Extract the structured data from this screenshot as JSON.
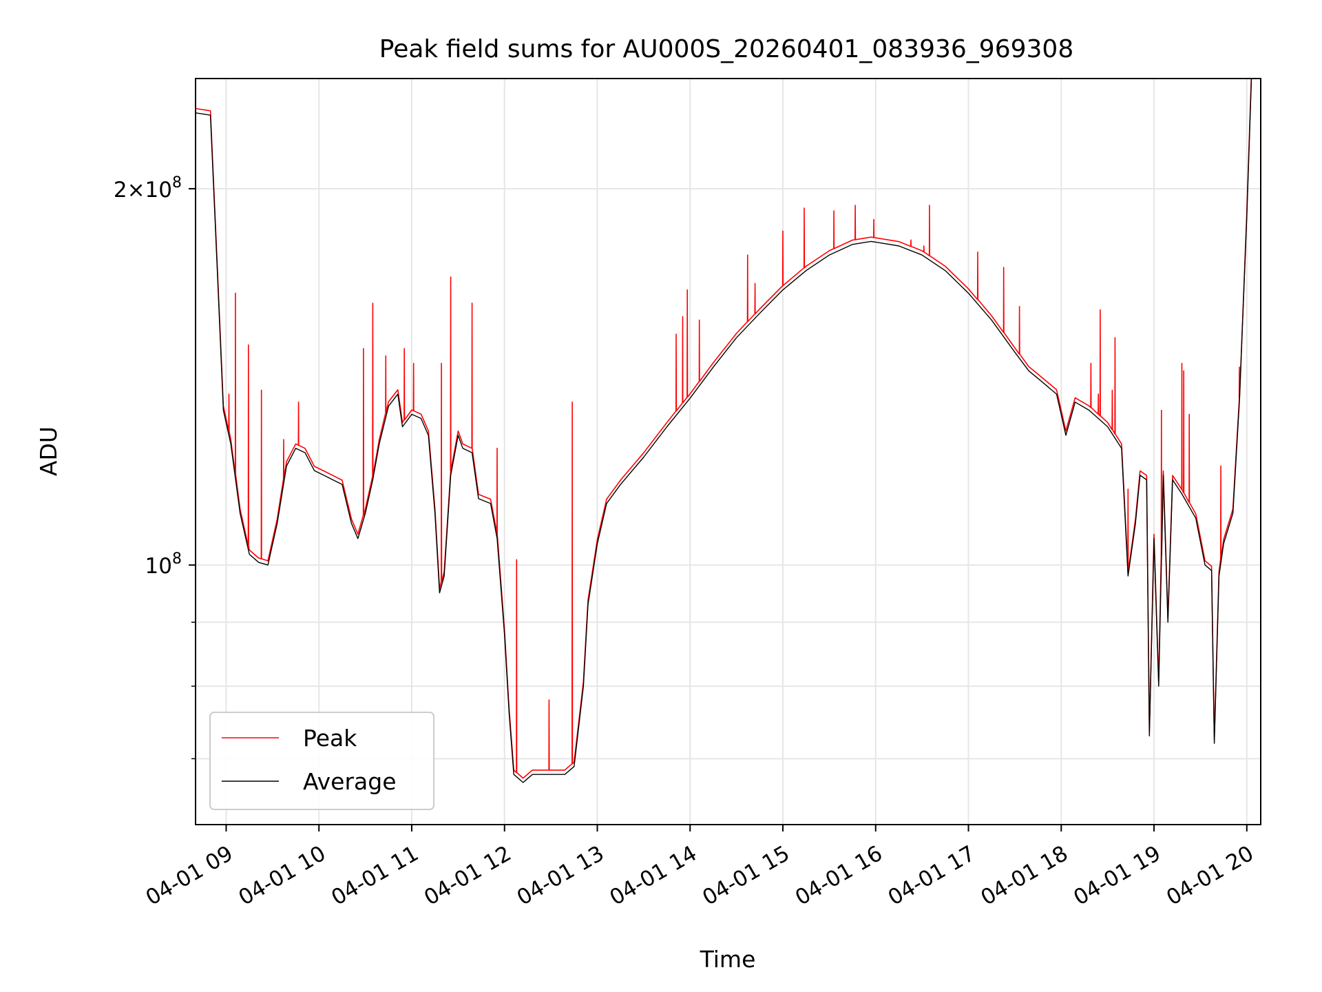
{
  "chart_data": {
    "type": "line",
    "title": "Peak field sums for AU000S_20260401_083936_969308",
    "xlabel": "Time",
    "ylabel": "ADU",
    "yscale": "log",
    "ylim": [
      62000000,
      245000000
    ],
    "xlim": [
      8.67,
      20.15
    ],
    "grid": true,
    "legend_location": "lower left",
    "x_unit": "hour of day on 04-01",
    "x_ticks": [
      {
        "value": 9,
        "label": "04-01 09"
      },
      {
        "value": 10,
        "label": "04-01 10"
      },
      {
        "value": 11,
        "label": "04-01 11"
      },
      {
        "value": 12,
        "label": "04-01 12"
      },
      {
        "value": 13,
        "label": "04-01 13"
      },
      {
        "value": 14,
        "label": "04-01 14"
      },
      {
        "value": 15,
        "label": "04-01 15"
      },
      {
        "value": 16,
        "label": "04-01 16"
      },
      {
        "value": 17,
        "label": "04-01 17"
      },
      {
        "value": 18,
        "label": "04-01 18"
      },
      {
        "value": 19,
        "label": "04-01 19"
      },
      {
        "value": 20,
        "label": "04-01 20"
      }
    ],
    "y_major_ticks": [
      {
        "value": 100000000,
        "base": "10",
        "exp": "8",
        "mult": ""
      },
      {
        "value": 200000000,
        "base": "10",
        "exp": "8",
        "mult": "2×"
      }
    ],
    "y_minor_ticks": [
      70000000,
      80000000,
      90000000
    ],
    "series": [
      {
        "name": "Average",
        "color": "#000000",
        "points": [
          [
            8.67,
            230000000
          ],
          [
            8.83,
            229000000
          ],
          [
            8.9,
            175000000
          ],
          [
            8.97,
            133000000
          ],
          [
            9.05,
            125000000
          ],
          [
            9.15,
            110000000
          ],
          [
            9.25,
            102000000
          ],
          [
            9.35,
            100500000
          ],
          [
            9.45,
            100000000
          ],
          [
            9.55,
            108000000
          ],
          [
            9.65,
            120000000
          ],
          [
            9.75,
            124000000
          ],
          [
            9.85,
            123000000
          ],
          [
            9.95,
            119000000
          ],
          [
            10.05,
            118000000
          ],
          [
            10.15,
            117000000
          ],
          [
            10.25,
            116000000
          ],
          [
            10.35,
            108000000
          ],
          [
            10.42,
            105000000
          ],
          [
            10.5,
            110000000
          ],
          [
            10.58,
            117000000
          ],
          [
            10.65,
            125000000
          ],
          [
            10.75,
            134000000
          ],
          [
            10.85,
            137000000
          ],
          [
            10.9,
            129000000
          ],
          [
            11.0,
            132000000
          ],
          [
            11.1,
            131000000
          ],
          [
            11.18,
            127000000
          ],
          [
            11.25,
            110000000
          ],
          [
            11.3,
            95000000
          ],
          [
            11.35,
            98000000
          ],
          [
            11.42,
            118000000
          ],
          [
            11.5,
            127000000
          ],
          [
            11.55,
            124000000
          ],
          [
            11.65,
            123000000
          ],
          [
            11.72,
            113000000
          ],
          [
            11.85,
            112000000
          ],
          [
            11.92,
            105000000
          ],
          [
            12.0,
            88000000
          ],
          [
            12.05,
            76000000
          ],
          [
            12.1,
            68000000
          ],
          [
            12.2,
            67000000
          ],
          [
            12.3,
            68000000
          ],
          [
            12.4,
            68000000
          ],
          [
            12.5,
            68000000
          ],
          [
            12.65,
            68000000
          ],
          [
            12.75,
            69000000
          ],
          [
            12.85,
            80000000
          ],
          [
            12.9,
            93000000
          ],
          [
            13.0,
            104000000
          ],
          [
            13.1,
            112000000
          ],
          [
            13.25,
            116000000
          ],
          [
            13.5,
            122000000
          ],
          [
            13.75,
            129000000
          ],
          [
            14.0,
            136000000
          ],
          [
            14.25,
            144000000
          ],
          [
            14.5,
            152000000
          ],
          [
            14.75,
            159000000
          ],
          [
            15.0,
            166000000
          ],
          [
            15.25,
            172000000
          ],
          [
            15.5,
            177000000
          ],
          [
            15.75,
            180500000
          ],
          [
            15.95,
            181500000
          ],
          [
            16.25,
            180000000
          ],
          [
            16.5,
            177000000
          ],
          [
            16.75,
            172000000
          ],
          [
            17.0,
            165000000
          ],
          [
            17.25,
            157000000
          ],
          [
            17.5,
            148000000
          ],
          [
            17.65,
            143000000
          ],
          [
            17.75,
            141000000
          ],
          [
            17.95,
            137000000
          ],
          [
            18.05,
            127000000
          ],
          [
            18.15,
            135000000
          ],
          [
            18.3,
            133000000
          ],
          [
            18.5,
            129000000
          ],
          [
            18.65,
            124000000
          ],
          [
            18.72,
            98000000
          ],
          [
            18.8,
            108000000
          ],
          [
            18.85,
            118000000
          ],
          [
            18.92,
            117000000
          ],
          [
            18.95,
            73000000
          ],
          [
            19.0,
            105000000
          ],
          [
            19.05,
            80000000
          ],
          [
            19.1,
            118000000
          ],
          [
            19.15,
            90000000
          ],
          [
            19.2,
            117000000
          ],
          [
            19.3,
            114000000
          ],
          [
            19.45,
            109000000
          ],
          [
            19.55,
            100000000
          ],
          [
            19.62,
            99000000
          ],
          [
            19.65,
            72000000
          ],
          [
            19.7,
            98000000
          ],
          [
            19.75,
            104000000
          ],
          [
            19.85,
            110000000
          ],
          [
            19.92,
            135000000
          ],
          [
            20.0,
            190000000
          ],
          [
            20.05,
            245000000
          ]
        ]
      },
      {
        "name": "Peak",
        "color": "#ff0000",
        "spikes": [
          [
            9.03,
            137000000
          ],
          [
            9.1,
            165000000
          ],
          [
            9.24,
            150000000
          ],
          [
            9.38,
            138000000
          ],
          [
            9.62,
            126000000
          ],
          [
            9.78,
            135000000
          ],
          [
            10.48,
            149000000
          ],
          [
            10.58,
            162000000
          ],
          [
            10.72,
            147000000
          ],
          [
            10.92,
            149000000
          ],
          [
            11.02,
            145000000
          ],
          [
            11.32,
            145000000
          ],
          [
            11.42,
            170000000
          ],
          [
            11.65,
            162000000
          ],
          [
            11.92,
            124000000
          ],
          [
            12.13,
            101000000
          ],
          [
            12.48,
            78000000
          ],
          [
            12.73,
            135000000
          ],
          [
            13.85,
            153000000
          ],
          [
            13.92,
            158000000
          ],
          [
            13.97,
            166000000
          ],
          [
            14.1,
            157000000
          ],
          [
            14.62,
            177000000
          ],
          [
            14.7,
            168000000
          ],
          [
            15.0,
            185000000
          ],
          [
            15.23,
            193000000
          ],
          [
            15.55,
            192000000
          ],
          [
            15.78,
            194000000
          ],
          [
            15.98,
            189000000
          ],
          [
            16.38,
            182000000
          ],
          [
            16.52,
            180000000
          ],
          [
            16.58,
            194000000
          ],
          [
            17.1,
            178000000
          ],
          [
            17.38,
            173000000
          ],
          [
            17.55,
            161000000
          ],
          [
            18.32,
            145000000
          ],
          [
            18.4,
            137000000
          ],
          [
            18.42,
            160000000
          ],
          [
            18.55,
            138000000
          ],
          [
            18.58,
            152000000
          ],
          [
            18.72,
            115000000
          ],
          [
            19.08,
            133000000
          ],
          [
            19.3,
            145000000
          ],
          [
            19.32,
            143000000
          ],
          [
            19.38,
            132000000
          ],
          [
            19.72,
            120000000
          ],
          [
            19.92,
            144000000
          ]
        ]
      }
    ]
  },
  "colors": {
    "peak": "#ff0000",
    "average": "#000000",
    "grid": "#e6e6e6"
  }
}
